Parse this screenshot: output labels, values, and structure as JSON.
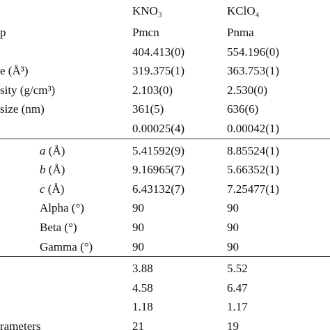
{
  "table": {
    "header": [
      "KNO₃",
      "KClO₄"
    ],
    "groups": [
      {
        "rows": [
          {
            "label": "p",
            "values": [
              "Pmcn",
              "Pnma"
            ]
          },
          {
            "values": [
              "404.413(0)",
              "554.196(0)"
            ]
          },
          {
            "label": "e (Å³)",
            "values": [
              "319.375(1)",
              "363.753(1)"
            ]
          },
          {
            "label": "sity (g/cm³)",
            "values": [
              "2.103(0)",
              "2.530(0)"
            ]
          },
          {
            "label": "size (nm)",
            "values": [
              "361(5)",
              "636(6)"
            ]
          },
          {
            "values": [
              "0.00025(4)",
              "0.00042(1)"
            ]
          }
        ]
      },
      {
        "rows": [
          {
            "var": "a",
            "label": "(Å)",
            "values": [
              "5.41592(9)",
              "8.85524(1)"
            ]
          },
          {
            "var": "b",
            "label": "(Å)",
            "values": [
              "9.16965(7)",
              "5.66352(1)"
            ]
          },
          {
            "var": "c",
            "label": "(Å)",
            "values": [
              "6.43132(7)",
              "7.25477(1)"
            ]
          },
          {
            "label": "Alpha (°)",
            "values": [
              "90",
              "90"
            ]
          },
          {
            "label": "Beta (°)",
            "values": [
              "90",
              "90"
            ]
          },
          {
            "label": "Gamma (°)",
            "values": [
              "90",
              "90"
            ]
          }
        ]
      },
      {
        "rows": [
          {
            "values": [
              "3.88",
              "5.52"
            ]
          },
          {
            "values": [
              "4.58",
              "6.47"
            ]
          },
          {
            "values": [
              "1.18",
              "1.17"
            ]
          },
          {
            "label": "rameters",
            "values": [
              "21",
              "19"
            ]
          }
        ]
      }
    ]
  }
}
